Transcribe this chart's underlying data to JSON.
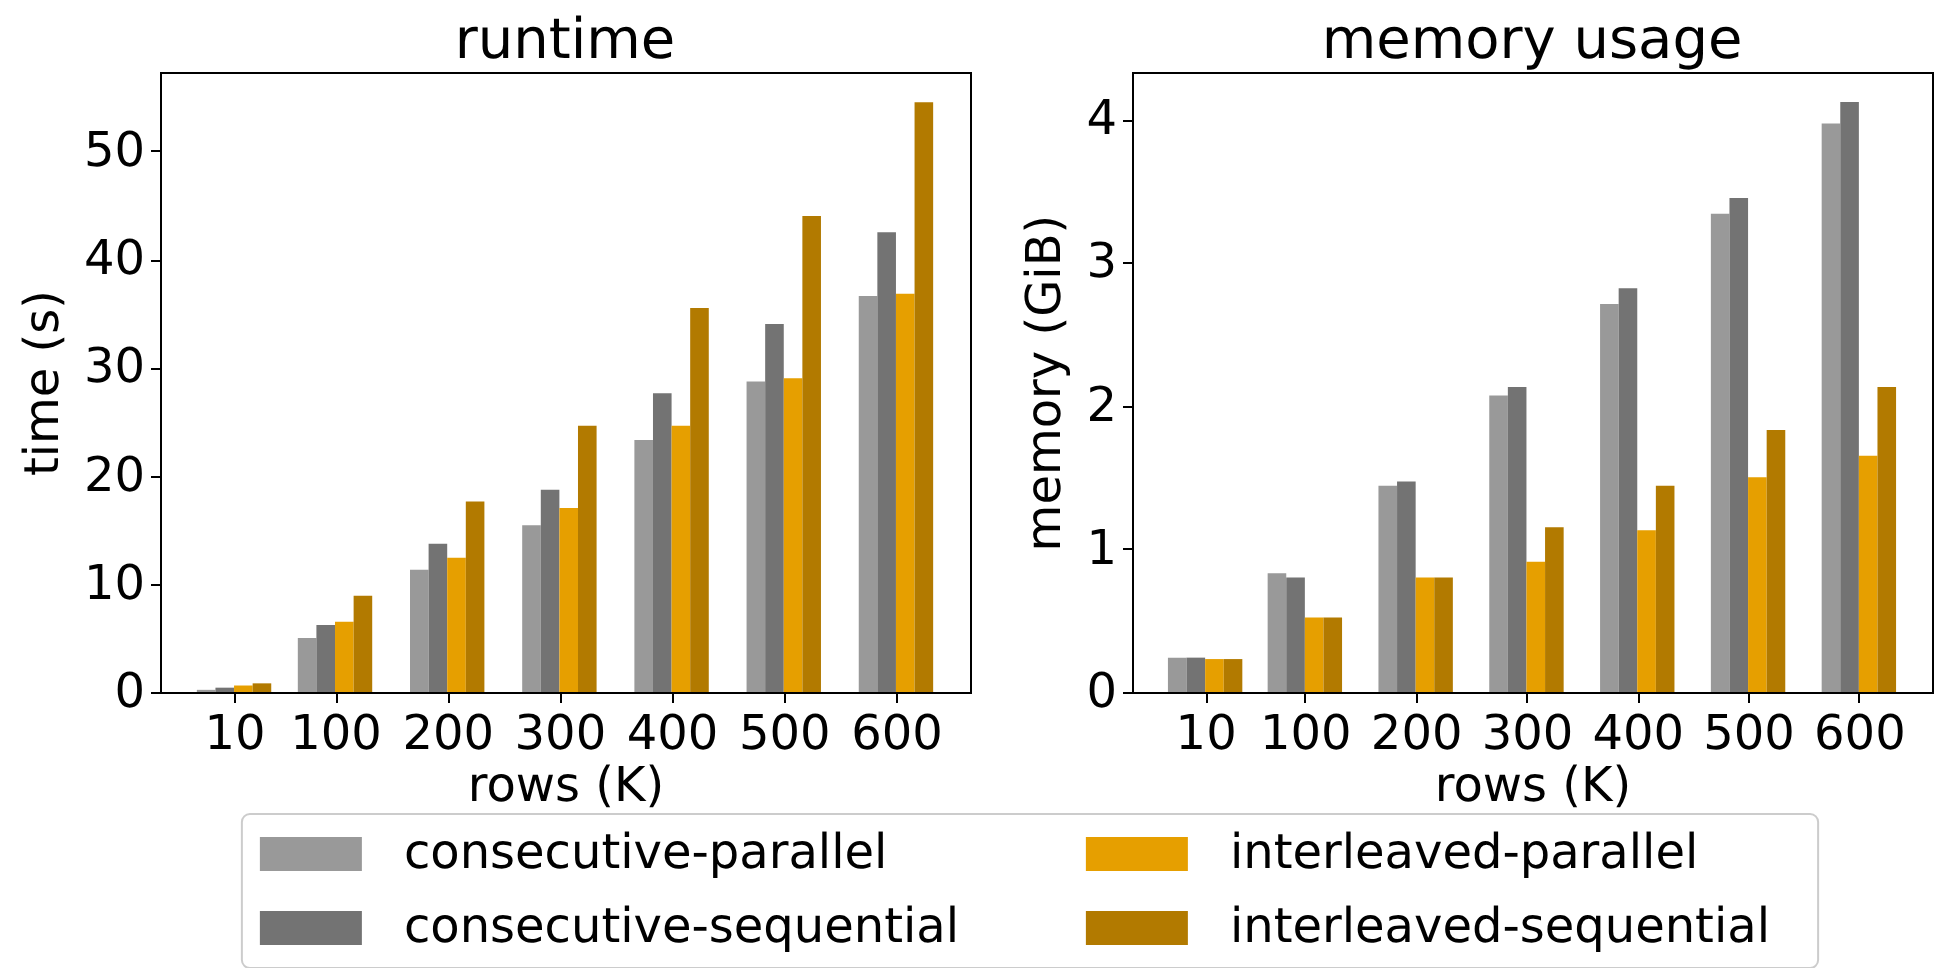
{
  "chart_data": [
    {
      "type": "bar",
      "title": "runtime",
      "xlabel": "rows (K)",
      "ylabel": "time (s)",
      "x": [
        10,
        100,
        200,
        300,
        400,
        500,
        600
      ],
      "xlim": [
        -56,
        666
      ],
      "xticks": [
        10,
        100,
        200,
        300,
        400,
        500,
        600
      ],
      "ylim": [
        0,
        57.3
      ],
      "yticks": [
        0,
        10,
        20,
        30,
        40,
        50
      ],
      "legend": "bottom",
      "series": [
        {
          "name": "consecutive-parallel",
          "color": "#999999",
          "values": [
            0.2,
            5.0,
            11.3,
            15.4,
            23.3,
            28.7,
            36.6
          ]
        },
        {
          "name": "consecutive-sequential",
          "color": "#737373",
          "values": [
            0.4,
            6.2,
            13.7,
            18.7,
            27.6,
            34.0,
            42.5
          ]
        },
        {
          "name": "interleaved-parallel",
          "color": "#e69f00",
          "values": [
            0.6,
            6.5,
            12.4,
            17.0,
            24.6,
            29.0,
            36.8
          ]
        },
        {
          "name": "interleaved-sequential",
          "color": "#b27a00",
          "values": [
            0.8,
            8.9,
            17.6,
            24.6,
            35.5,
            44.0,
            54.5
          ]
        }
      ]
    },
    {
      "type": "bar",
      "title": "memory usage",
      "xlabel": "rows (K)",
      "ylabel": "memory (GiB)",
      "x": [
        10,
        100,
        200,
        300,
        400,
        500,
        600
      ],
      "xlim": [
        -56,
        666
      ],
      "xticks": [
        10,
        100,
        200,
        300,
        400,
        500,
        600
      ],
      "ylim": [
        0,
        4.33
      ],
      "yticks": [
        0,
        1,
        2,
        3,
        4
      ],
      "legend": "bottom",
      "series": [
        {
          "name": "consecutive-parallel",
          "color": "#999999",
          "values": [
            0.24,
            0.83,
            1.44,
            2.07,
            2.71,
            3.34,
            3.97
          ]
        },
        {
          "name": "consecutive-sequential",
          "color": "#737373",
          "values": [
            0.24,
            0.8,
            1.47,
            2.13,
            2.82,
            3.45,
            4.12
          ]
        },
        {
          "name": "interleaved-parallel",
          "color": "#e69f00",
          "values": [
            0.23,
            0.52,
            0.8,
            0.91,
            1.13,
            1.5,
            1.65
          ]
        },
        {
          "name": "interleaved-sequential",
          "color": "#b27a00",
          "values": [
            0.23,
            0.52,
            0.8,
            1.15,
            1.44,
            1.83,
            2.13
          ]
        }
      ]
    }
  ]
}
